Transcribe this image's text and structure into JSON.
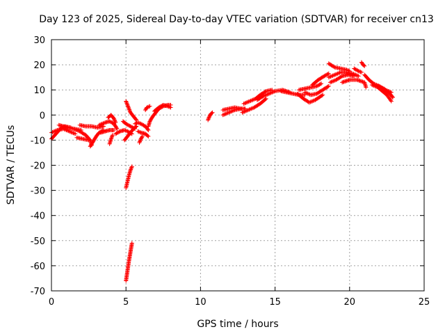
{
  "chart_data": {
    "type": "scatter",
    "title": "Day 123 of 2025, Sidereal Day-to-day VTEC variation (SDTVAR) for receiver cn13",
    "xlabel": "GPS time / hours",
    "ylabel": "SDTVAR / TECUs",
    "xlim": [
      0,
      25
    ],
    "ylim": [
      -70,
      30
    ],
    "xticks": [
      "0",
      "5",
      "10",
      "15",
      "20",
      "25"
    ],
    "yticks": [
      "30",
      "20",
      "10",
      "0",
      "-10",
      "-20",
      "-30",
      "-40",
      "-50",
      "-60",
      "-70"
    ],
    "grid": true,
    "marker": "+",
    "series": [
      {
        "name": "SDTVAR",
        "color": "#ff0000",
        "segments": [
          [
            [
              0.0,
              -9.5
            ],
            [
              0.3,
              -7.5
            ],
            [
              0.6,
              -5.5
            ],
            [
              0.9,
              -4.5
            ],
            [
              1.3,
              -5.0
            ]
          ],
          [
            [
              0.0,
              -7.0
            ],
            [
              0.4,
              -6.0
            ],
            [
              0.8,
              -5.5
            ],
            [
              1.2,
              -6.5
            ],
            [
              1.6,
              -7.5
            ]
          ],
          [
            [
              0.5,
              -4.0
            ],
            [
              0.8,
              -4.5
            ],
            [
              1.1,
              -5.0
            ],
            [
              1.5,
              -5.5
            ],
            [
              2.0,
              -6.0
            ]
          ],
          [
            [
              1.5,
              -5.5
            ],
            [
              1.9,
              -6.5
            ],
            [
              2.3,
              -8.0
            ],
            [
              2.6,
              -10.0
            ],
            [
              2.7,
              -12.0
            ]
          ],
          [
            [
              2.6,
              -12.5
            ],
            [
              2.8,
              -10.5
            ],
            [
              3.0,
              -8.5
            ],
            [
              3.2,
              -7.0
            ],
            [
              3.5,
              -6.0
            ]
          ],
          [
            [
              1.9,
              -4.0
            ],
            [
              2.3,
              -4.5
            ],
            [
              2.7,
              -4.5
            ],
            [
              3.1,
              -5.0
            ],
            [
              3.5,
              -4.5
            ]
          ],
          [
            [
              1.7,
              -9.0
            ],
            [
              2.1,
              -9.5
            ],
            [
              2.5,
              -10.0
            ]
          ],
          [
            [
              3.2,
              -4.0
            ],
            [
              3.6,
              -3.0
            ],
            [
              3.9,
              -2.5
            ],
            [
              4.2,
              -3.5
            ],
            [
              4.4,
              -5.5
            ]
          ],
          [
            [
              3.3,
              -7.0
            ],
            [
              3.6,
              -6.5
            ],
            [
              3.9,
              -6.0
            ],
            [
              4.2,
              -6.0
            ]
          ],
          [
            [
              3.8,
              -1.0
            ],
            [
              4.0,
              0.0
            ],
            [
              4.2,
              -1.5
            ],
            [
              4.3,
              -3.0
            ]
          ],
          [
            [
              3.9,
              -11.5
            ],
            [
              4.0,
              -9.5
            ],
            [
              4.1,
              -8.0
            ]
          ],
          [
            [
              4.3,
              -7.5
            ],
            [
              4.6,
              -6.5
            ],
            [
              4.9,
              -6.0
            ],
            [
              5.1,
              -6.5
            ],
            [
              5.4,
              -7.5
            ]
          ],
          [
            [
              4.8,
              -2.5
            ],
            [
              5.0,
              -3.5
            ],
            [
              5.3,
              -4.5
            ],
            [
              5.6,
              -5.5
            ]
          ],
          [
            [
              4.9,
              -10.0
            ],
            [
              5.1,
              -8.5
            ],
            [
              5.3,
              -7.0
            ],
            [
              5.5,
              -5.5
            ],
            [
              5.7,
              -4.5
            ]
          ],
          [
            [
              5.0,
              5.5
            ],
            [
              5.1,
              4.0
            ],
            [
              5.2,
              2.5
            ],
            [
              5.3,
              1.0
            ],
            [
              5.5,
              -0.5
            ],
            [
              5.7,
              -2.0
            ]
          ],
          [
            [
              5.0,
              -29.0
            ],
            [
              5.1,
              -26.5
            ],
            [
              5.2,
              -24.0
            ],
            [
              5.3,
              -22.0
            ],
            [
              5.4,
              -20.5
            ]
          ],
          [
            [
              5.0,
              -66.0
            ],
            [
              5.1,
              -62.0
            ],
            [
              5.2,
              -58.0
            ],
            [
              5.3,
              -54.5
            ],
            [
              5.4,
              -51.0
            ]
          ],
          [
            [
              5.6,
              -3.5
            ],
            [
              5.8,
              -3.0
            ],
            [
              6.0,
              -3.5
            ],
            [
              6.3,
              -4.5
            ],
            [
              6.5,
              -6.0
            ]
          ],
          [
            [
              5.8,
              -6.5
            ],
            [
              6.0,
              -7.0
            ],
            [
              6.3,
              -7.5
            ],
            [
              6.5,
              -8.5
            ]
          ],
          [
            [
              5.9,
              -11.0
            ],
            [
              6.0,
              -9.5
            ],
            [
              6.1,
              -8.5
            ]
          ],
          [
            [
              6.3,
              2.0
            ],
            [
              6.4,
              3.0
            ],
            [
              6.6,
              3.5
            ]
          ],
          [
            [
              6.5,
              -4.5
            ],
            [
              6.6,
              -2.5
            ],
            [
              6.8,
              -0.5
            ],
            [
              7.0,
              1.0
            ],
            [
              7.2,
              2.5
            ],
            [
              7.5,
              3.5
            ],
            [
              7.8,
              4.0
            ],
            [
              8.0,
              4.0
            ]
          ],
          [
            [
              6.9,
              1.5
            ],
            [
              7.2,
              3.0
            ],
            [
              7.5,
              4.0
            ],
            [
              7.8,
              3.5
            ],
            [
              8.0,
              3.0
            ]
          ],
          [
            [
              10.5,
              -2.0
            ],
            [
              10.6,
              -0.5
            ],
            [
              10.7,
              0.5
            ],
            [
              10.8,
              1.0
            ]
          ],
          [
            [
              11.5,
              0.0
            ],
            [
              11.9,
              1.0
            ],
            [
              12.3,
              2.0
            ],
            [
              12.7,
              2.5
            ]
          ],
          [
            [
              11.5,
              2.0
            ],
            [
              11.9,
              2.5
            ],
            [
              12.3,
              3.0
            ],
            [
              12.7,
              2.5
            ],
            [
              13.0,
              2.5
            ]
          ],
          [
            [
              12.8,
              1.0
            ],
            [
              13.2,
              2.0
            ],
            [
              13.6,
              3.0
            ],
            [
              14.0,
              4.5
            ],
            [
              14.4,
              6.5
            ]
          ],
          [
            [
              12.9,
              4.5
            ],
            [
              13.3,
              5.5
            ],
            [
              13.7,
              6.5
            ],
            [
              14.0,
              8.0
            ],
            [
              14.4,
              9.5
            ],
            [
              14.8,
              10.0
            ]
          ],
          [
            [
              13.8,
              6.0
            ],
            [
              14.2,
              7.5
            ],
            [
              14.6,
              8.5
            ],
            [
              15.0,
              9.5
            ],
            [
              15.5,
              10.0
            ],
            [
              16.0,
              9.0
            ]
          ],
          [
            [
              15.4,
              9.5
            ],
            [
              15.8,
              9.0
            ],
            [
              16.2,
              8.5
            ],
            [
              16.6,
              8.0
            ],
            [
              17.0,
              8.0
            ]
          ],
          [
            [
              16.5,
              8.5
            ],
            [
              16.9,
              6.5
            ],
            [
              17.3,
              5.0
            ],
            [
              17.7,
              6.0
            ],
            [
              18.2,
              8.0
            ]
          ],
          [
            [
              16.6,
              10.0
            ],
            [
              17.0,
              10.5
            ],
            [
              17.4,
              11.0
            ],
            [
              17.8,
              11.5
            ],
            [
              18.1,
              12.5
            ]
          ],
          [
            [
              17.0,
              9.0
            ],
            [
              17.4,
              8.0
            ],
            [
              17.8,
              8.5
            ],
            [
              18.2,
              10.0
            ],
            [
              18.6,
              11.5
            ]
          ],
          [
            [
              17.5,
              12.0
            ],
            [
              17.9,
              14.0
            ],
            [
              18.3,
              15.5
            ],
            [
              18.6,
              16.5
            ]
          ],
          [
            [
              18.6,
              20.5
            ],
            [
              19.0,
              19.0
            ],
            [
              19.4,
              18.5
            ],
            [
              19.8,
              18.0
            ],
            [
              20.0,
              17.5
            ]
          ],
          [
            [
              18.7,
              13.0
            ],
            [
              19.1,
              14.0
            ],
            [
              19.5,
              15.5
            ],
            [
              19.9,
              16.0
            ],
            [
              20.3,
              15.5
            ]
          ],
          [
            [
              18.6,
              15.0
            ],
            [
              19.0,
              16.0
            ],
            [
              19.4,
              17.0
            ],
            [
              19.8,
              17.0
            ],
            [
              20.2,
              16.5
            ],
            [
              20.6,
              15.5
            ]
          ],
          [
            [
              19.5,
              13.0
            ],
            [
              20.0,
              14.0
            ],
            [
              20.5,
              14.0
            ],
            [
              21.0,
              13.0
            ],
            [
              21.1,
              11.0
            ]
          ],
          [
            [
              20.3,
              18.5
            ],
            [
              20.6,
              17.5
            ],
            [
              20.8,
              17.0
            ]
          ],
          [
            [
              20.8,
              21.0
            ],
            [
              20.9,
              20.0
            ],
            [
              21.0,
              19.5
            ]
          ],
          [
            [
              21.0,
              16.0
            ],
            [
              21.3,
              14.0
            ],
            [
              21.6,
              12.5
            ],
            [
              22.0,
              11.5
            ],
            [
              22.4,
              10.0
            ],
            [
              22.8,
              9.0
            ]
          ],
          [
            [
              21.5,
              12.0
            ],
            [
              21.9,
              11.0
            ],
            [
              22.2,
              9.5
            ],
            [
              22.5,
              8.0
            ],
            [
              22.8,
              5.5
            ]
          ],
          [
            [
              21.9,
              11.5
            ],
            [
              22.3,
              10.5
            ],
            [
              22.7,
              8.5
            ],
            [
              22.9,
              7.0
            ]
          ]
        ]
      }
    ]
  }
}
